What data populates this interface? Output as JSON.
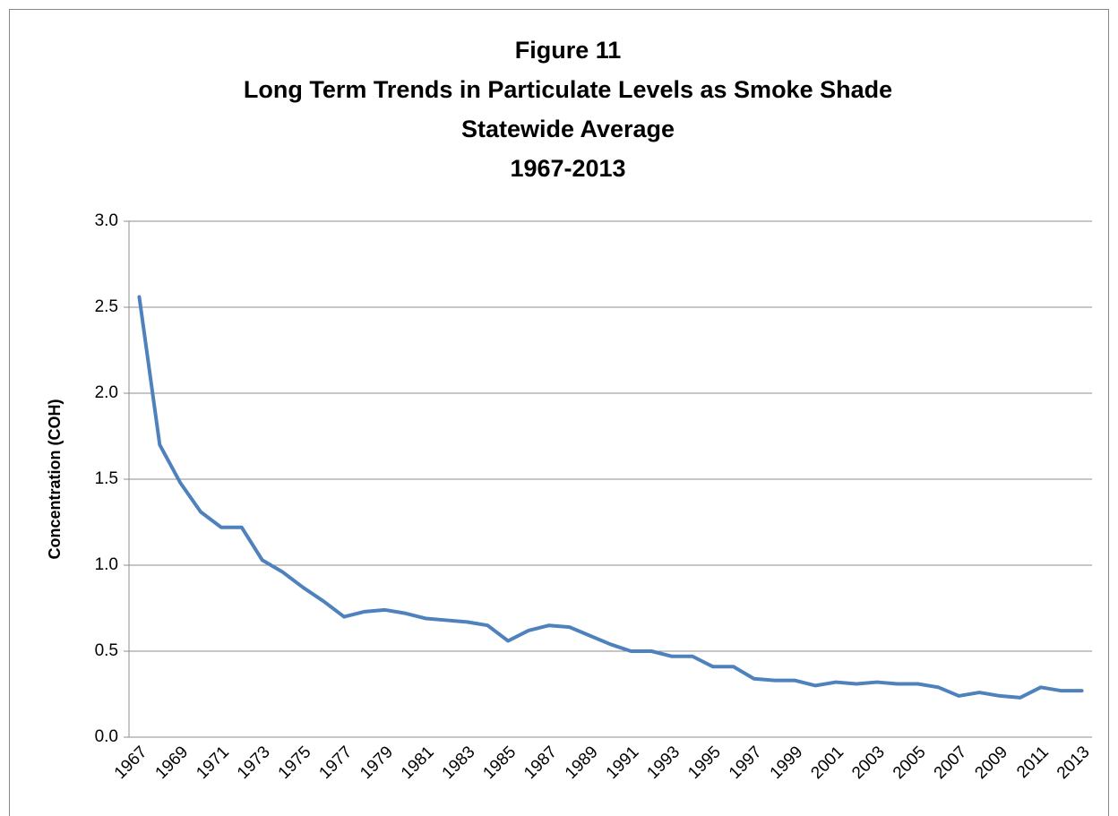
{
  "chart_data": {
    "type": "line",
    "title": [
      "Figure 11",
      "Long Term Trends in Particulate Levels as Smoke Shade",
      "Statewide Average",
      "1967-2013"
    ],
    "y_label": "Concentration  (COH)",
    "categories": [
      "1967",
      null,
      "1969",
      null,
      "1971",
      null,
      "1973",
      null,
      "1975",
      null,
      "1977",
      null,
      "1979",
      null,
      "1981",
      null,
      "1983",
      null,
      "1985",
      null,
      "1987",
      null,
      "1989",
      null,
      "1991",
      null,
      "1993",
      null,
      "1995",
      null,
      "1997",
      null,
      "1999",
      null,
      "2001",
      null,
      "2003",
      null,
      "2005",
      null,
      "2007",
      null,
      "2009",
      null,
      "2011",
      null,
      "2013"
    ],
    "series": [
      {
        "name": "Statewide Average",
        "color": "#4f81bd",
        "values": [
          2.56,
          1.7,
          1.48,
          1.31,
          1.22,
          1.22,
          1.03,
          0.96,
          0.87,
          0.79,
          0.7,
          0.73,
          0.74,
          0.72,
          0.69,
          0.68,
          0.67,
          0.65,
          0.56,
          0.62,
          0.65,
          0.64,
          0.59,
          0.54,
          0.5,
          0.5,
          0.47,
          0.47,
          0.41,
          0.41,
          0.34,
          0.33,
          0.33,
          0.3,
          0.32,
          0.31,
          0.32,
          0.31,
          0.31,
          0.29,
          0.24,
          0.26,
          0.24,
          0.23,
          0.29,
          0.27,
          0.27
        ]
      }
    ],
    "ylim": [
      0,
      3
    ],
    "yticks": [
      {
        "value": 0,
        "label": "0.0"
      },
      {
        "value": 0.5,
        "label": "0.5"
      },
      {
        "value": 1,
        "label": "1.0"
      },
      {
        "value": 1.5,
        "label": "1.5"
      },
      {
        "value": 2,
        "label": "2.0"
      },
      {
        "value": 2.5,
        "label": "2.5"
      },
      {
        "value": 3,
        "label": "3.0"
      }
    ],
    "grid": true
  }
}
